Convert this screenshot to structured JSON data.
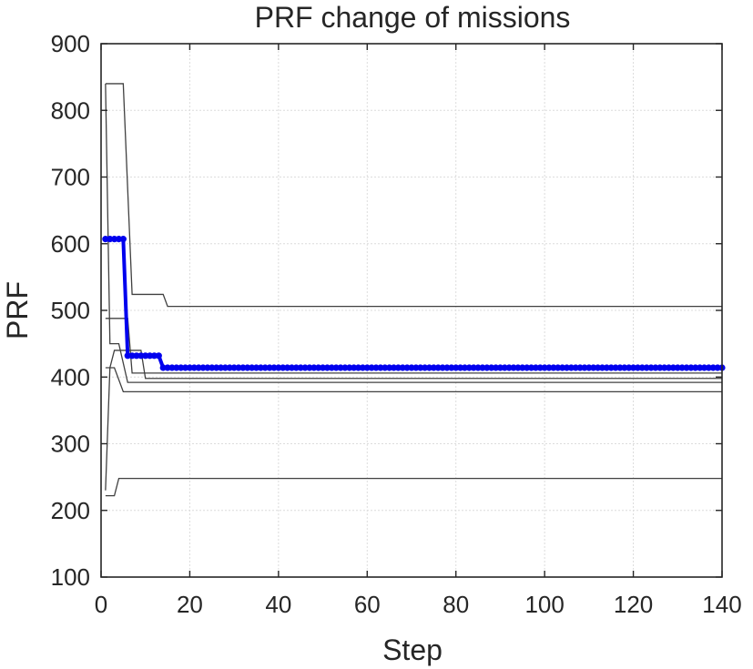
{
  "chart_data": {
    "type": "line",
    "title": "PRF change of missions",
    "xlabel": "Step",
    "ylabel": "PRF",
    "xlim": [
      0,
      140
    ],
    "ylim": [
      100,
      900
    ],
    "xticks": [
      0,
      20,
      40,
      60,
      80,
      100,
      120,
      140
    ],
    "yticks": [
      100,
      200,
      300,
      400,
      500,
      600,
      700,
      800,
      900
    ],
    "grid": true,
    "legend": "none",
    "colors": {
      "highlight": "#0000ee",
      "other": "#404040"
    },
    "series": [
      {
        "highlight": true,
        "x": [
          1,
          2,
          3,
          4,
          5,
          6,
          7,
          8,
          9,
          10,
          11,
          12,
          13,
          14,
          15,
          16,
          17,
          18,
          19,
          20,
          21,
          22,
          23,
          24,
          25,
          26,
          27,
          28,
          29,
          30,
          31,
          32,
          33,
          34,
          35,
          36,
          37,
          38,
          39,
          40,
          41,
          42,
          43,
          44,
          45,
          46,
          47,
          48,
          49,
          50,
          51,
          52,
          53,
          54,
          55,
          56,
          57,
          58,
          59,
          60,
          61,
          62,
          63,
          64,
          65,
          66,
          67,
          68,
          69,
          70,
          71,
          72,
          73,
          74,
          75,
          76,
          77,
          78,
          79,
          80,
          81,
          82,
          83,
          84,
          85,
          86,
          87,
          88,
          89,
          90,
          91,
          92,
          93,
          94,
          95,
          96,
          97,
          98,
          99,
          100,
          101,
          102,
          103,
          104,
          105,
          106,
          107,
          108,
          109,
          110,
          111,
          112,
          113,
          114,
          115,
          116,
          117,
          118,
          119,
          120,
          121,
          122,
          123,
          124,
          125,
          126,
          127,
          128,
          129,
          130,
          131,
          132,
          133,
          134,
          135,
          136,
          137,
          138,
          139,
          140
        ],
        "y": [
          607,
          607,
          607,
          607,
          607,
          432,
          432,
          432,
          432,
          432,
          432,
          432,
          432,
          414,
          414,
          414,
          414,
          414,
          414,
          414,
          414,
          414,
          414,
          414,
          414,
          414,
          414,
          414,
          414,
          414,
          414,
          414,
          414,
          414,
          414,
          414,
          414,
          414,
          414,
          414,
          414,
          414,
          414,
          414,
          414,
          414,
          414,
          414,
          414,
          414,
          414,
          414,
          414,
          414,
          414,
          414,
          414,
          414,
          414,
          414,
          414,
          414,
          414,
          414,
          414,
          414,
          414,
          414,
          414,
          414,
          414,
          414,
          414,
          414,
          414,
          414,
          414,
          414,
          414,
          414,
          414,
          414,
          414,
          414,
          414,
          414,
          414,
          414,
          414,
          414,
          414,
          414,
          414,
          414,
          414,
          414,
          414,
          414,
          414,
          414,
          414,
          414,
          414,
          414,
          414,
          414,
          414,
          414,
          414,
          414,
          414,
          414,
          414,
          414,
          414,
          414,
          414,
          414,
          414,
          414,
          414,
          414,
          414,
          414,
          414,
          414,
          414,
          414,
          414,
          414,
          414,
          414,
          414,
          414,
          414,
          414,
          414,
          414,
          414,
          414
        ]
      },
      {
        "highlight": false,
        "x": [
          1,
          5,
          7,
          14,
          15,
          140
        ],
        "y": [
          840,
          840,
          524,
          524,
          506,
          506
        ]
      },
      {
        "highlight": false,
        "x": [
          1,
          6,
          7,
          140
        ],
        "y": [
          488,
          488,
          406,
          406
        ]
      },
      {
        "highlight": false,
        "x": [
          1,
          2,
          4,
          6,
          140
        ],
        "y": [
          840,
          450,
          450,
          392,
          392
        ]
      },
      {
        "highlight": false,
        "x": [
          1,
          2,
          3,
          9,
          10,
          140
        ],
        "y": [
          414,
          414,
          440,
          440,
          398,
          398
        ]
      },
      {
        "highlight": false,
        "x": [
          1,
          2,
          3,
          5,
          140
        ],
        "y": [
          230,
          414,
          414,
          378,
          378
        ]
      },
      {
        "highlight": false,
        "x": [
          1,
          3,
          4,
          140
        ],
        "y": [
          222,
          222,
          248,
          248
        ]
      }
    ]
  }
}
